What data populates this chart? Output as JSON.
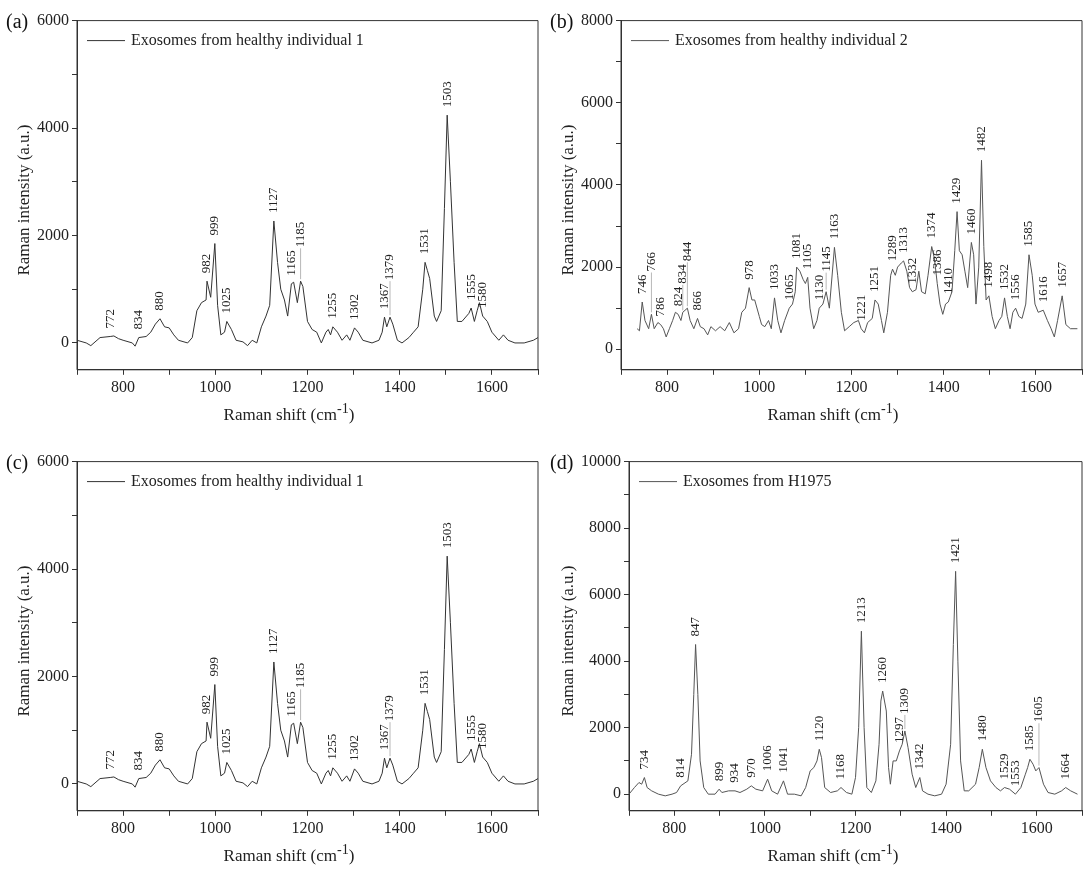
{
  "chart_data": [
    {
      "type": "line",
      "title": "(a)",
      "xlabel": "Raman shift (cm$^{-1}$)",
      "ylabel": "Raman intensity (a.u.)",
      "legend": "top left",
      "marker": "none",
      "line_style": "solid",
      "xlim": [
        700,
        1700
      ],
      "xticks": [
        {
          "value": 700,
          "label": null
        },
        800,
        {
          "value": 900,
          "label": null
        },
        1000,
        {
          "value": 1100,
          "label": null
        },
        1200,
        {
          "value": 1300,
          "label": null
        },
        1400,
        {
          "value": 1500,
          "label": null
        },
        1600,
        {
          "value": 1700,
          "label": null
        }
      ],
      "ylim": [
        -500,
        6000
      ],
      "yticks": [
        0,
        {
          "value": 1000,
          "label": null
        },
        2000,
        {
          "value": 3000,
          "label": null
        },
        4000,
        {
          "value": 5000,
          "label": null
        },
        6000
      ],
      "x": [
        700,
        720,
        730,
        750,
        772,
        780,
        790,
        800,
        820,
        826,
        834,
        850,
        860,
        870,
        880,
        890,
        900,
        910,
        920,
        940,
        950,
        960,
        970,
        980,
        982,
        990,
        999,
        1005,
        1012,
        1020,
        1025,
        1035,
        1045,
        1060,
        1070,
        1080,
        1090,
        1100,
        1110,
        1118,
        1127,
        1135,
        1142,
        1150,
        1157,
        1165,
        1170,
        1178,
        1185,
        1190,
        1200,
        1210,
        1220,
        1230,
        1240,
        1245,
        1250,
        1255,
        1265,
        1275,
        1285,
        1292,
        1302,
        1310,
        1320,
        1340,
        1355,
        1362,
        1367,
        1372,
        1379,
        1385,
        1395,
        1405,
        1420,
        1430,
        1440,
        1450,
        1455,
        1460,
        1465,
        1475,
        1480,
        1490,
        1497,
        1503,
        1510,
        1518,
        1525,
        1535,
        1550,
        1555,
        1562,
        1568,
        1573,
        1580,
        1590,
        1600,
        1615,
        1625,
        1635,
        1650,
        1670,
        1690,
        1700
      ],
      "series": [
        {
          "name": "Exosomes from healthy individual 1",
          "color": "#333333",
          "values": [
            50,
            0,
            -50,
            100,
            120,
            130,
            80,
            50,
            0,
            -60,
            100,
            120,
            200,
            350,
            450,
            300,
            280,
            150,
            50,
            0,
            100,
            600,
            750,
            800,
            1150,
            850,
            1850,
            700,
            150,
            200,
            400,
            250,
            50,
            20,
            -50,
            50,
            0,
            300,
            500,
            700,
            2270,
            1500,
            1000,
            800,
            500,
            1100,
            1130,
            750,
            1150,
            1050,
            400,
            250,
            200,
            0,
            200,
            250,
            150,
            300,
            200,
            50,
            150,
            50,
            280,
            200,
            50,
            0,
            50,
            200,
            480,
            300,
            480,
            350,
            50,
            0,
            100,
            200,
            300,
            1000,
            1500,
            1350,
            1200,
            500,
            400,
            600,
            2500,
            4240,
            3000,
            1500,
            400,
            400,
            550,
            650,
            400,
            600,
            750,
            500,
            400,
            200,
            50,
            150,
            50,
            0,
            0,
            50,
            100
          ]
        }
      ],
      "annotations": [
        {
          "text": "772",
          "x": 772,
          "y": 120
        },
        {
          "text": "834",
          "x": 834,
          "y": 100
        },
        {
          "text": "880",
          "x": 880,
          "y": 450
        },
        {
          "text": "982",
          "x": 982,
          "y": 1150
        },
        {
          "text": "999",
          "x": 999,
          "y": 1850
        },
        {
          "text": "1025",
          "x": 1025,
          "y": 400
        },
        {
          "text": "1127",
          "x": 1127,
          "y": 2270
        },
        {
          "text": "1165",
          "x": 1165,
          "y": 1100
        },
        {
          "text": "1185",
          "x": 1185,
          "y": 1150
        },
        {
          "text": "1255",
          "x": 1255,
          "y": 300
        },
        {
          "text": "1302",
          "x": 1302,
          "y": 280
        },
        {
          "text": "1367",
          "x": 1367,
          "y": 480
        },
        {
          "text": "1379",
          "x": 1379,
          "y": 480
        },
        {
          "text": "1531",
          "x": 1455,
          "y": 1500
        },
        {
          "text": "1503",
          "x": 1503,
          "y": 4240
        },
        {
          "text": "1555",
          "x": 1555,
          "y": 650
        },
        {
          "text": "1580",
          "x": 1580,
          "y": 500
        }
      ]
    },
    {
      "type": "line",
      "title": "(b)",
      "xlabel": "Raman shift (cm$^{-1}$)",
      "ylabel": "Raman intensity (a.u.)",
      "legend": "top left",
      "marker": "none",
      "line_style": "solid",
      "xlim": [
        700,
        1700
      ],
      "xticks": [
        {
          "value": 700,
          "label": null
        },
        800,
        {
          "value": 900,
          "label": null
        },
        1000,
        {
          "value": 1100,
          "label": null
        },
        1200,
        {
          "value": 1300,
          "label": null
        },
        1400,
        {
          "value": 1500,
          "label": null
        },
        1600,
        {
          "value": 1700,
          "label": null
        }
      ],
      "ylim": [
        -500,
        8000
      ],
      "yticks": [
        0,
        {
          "value": 1000,
          "label": null
        },
        2000,
        {
          "value": 3000,
          "label": null
        },
        4000,
        {
          "value": 5000,
          "label": null
        },
        6000,
        {
          "value": 7000,
          "label": null
        },
        8000
      ],
      "x": [
        735,
        740,
        746,
        752,
        760,
        766,
        772,
        780,
        786,
        792,
        798,
        805,
        812,
        818,
        824,
        830,
        834,
        844,
        850,
        858,
        866,
        872,
        880,
        888,
        895,
        905,
        915,
        925,
        935,
        945,
        955,
        962,
        970,
        978,
        984,
        990,
        1000,
        1005,
        1012,
        1020,
        1026,
        1033,
        1040,
        1047,
        1055,
        1065,
        1072,
        1078,
        1081,
        1088,
        1095,
        1100,
        1105,
        1110,
        1118,
        1125,
        1130,
        1138,
        1145,
        1152,
        1163,
        1170,
        1178,
        1185,
        1195,
        1205,
        1215,
        1221,
        1228,
        1235,
        1245,
        1251,
        1258,
        1265,
        1270,
        1278,
        1285,
        1289,
        1295,
        1300,
        1308,
        1313,
        1320,
        1326,
        1332,
        1340,
        1346,
        1352,
        1360,
        1366,
        1374,
        1380,
        1386,
        1392,
        1398,
        1404,
        1410,
        1418,
        1424,
        1429,
        1434,
        1440,
        1446,
        1452,
        1460,
        1465,
        1470,
        1476,
        1482,
        1487,
        1492,
        1498,
        1505,
        1512,
        1520,
        1526,
        1532,
        1538,
        1544,
        1550,
        1556,
        1563,
        1570,
        1578,
        1585,
        1592,
        1598,
        1605,
        1616,
        1625,
        1633,
        1640,
        1647,
        1657,
        1665,
        1675,
        1690
      ],
      "series": [
        {
          "name": "Exosomes from healthy individual 2",
          "color": "#555555",
          "values": [
            500,
            450,
            1150,
            700,
            500,
            850,
            500,
            650,
            600,
            500,
            300,
            500,
            700,
            900,
            850,
            700,
            900,
            1000,
            700,
            500,
            750,
            550,
            500,
            350,
            550,
            450,
            550,
            450,
            650,
            400,
            500,
            900,
            1000,
            1500,
            1200,
            1200,
            800,
            600,
            550,
            700,
            500,
            1250,
            700,
            400,
            700,
            1000,
            1100,
            1400,
            2000,
            1900,
            1700,
            1600,
            1750,
            1000,
            500,
            700,
            1000,
            1100,
            1400,
            1000,
            2480,
            1800,
            900,
            450,
            550,
            650,
            700,
            500,
            400,
            650,
            750,
            1200,
            1100,
            700,
            400,
            900,
            1800,
            1950,
            1800,
            2000,
            2100,
            2150,
            1900,
            1500,
            1400,
            1450,
            1900,
            1400,
            1350,
            1800,
            2500,
            2200,
            1600,
            1100,
            850,
            1100,
            1150,
            1400,
            2400,
            3350,
            2400,
            2300,
            1900,
            1500,
            2600,
            2300,
            1100,
            2000,
            4600,
            2500,
            1200,
            1300,
            800,
            500,
            700,
            800,
            1250,
            800,
            500,
            900,
            1000,
            800,
            750,
            1100,
            2300,
            1800,
            1100,
            900,
            950,
            700,
            500,
            300,
            700,
            1300,
            600,
            500,
            500
          ]
        }
      ],
      "annotations": [
        {
          "text": "746",
          "x": 746,
          "y": 1150
        },
        {
          "text": "766",
          "x": 766,
          "y": 850
        },
        {
          "text": "786",
          "x": 786,
          "y": 600
        },
        {
          "text": "824",
          "x": 824,
          "y": 850
        },
        {
          "text": "834",
          "x": 834,
          "y": 900
        },
        {
          "text": "844",
          "x": 844,
          "y": 1000
        },
        {
          "text": "866",
          "x": 866,
          "y": 750
        },
        {
          "text": "978",
          "x": 978,
          "y": 1500
        },
        {
          "text": "1033",
          "x": 1033,
          "y": 1250
        },
        {
          "text": "1065",
          "x": 1065,
          "y": 1000
        },
        {
          "text": "1081",
          "x": 1081,
          "y": 2000
        },
        {
          "text": "1105",
          "x": 1105,
          "y": 1750
        },
        {
          "text": "1130",
          "x": 1130,
          "y": 1000
        },
        {
          "text": "1145",
          "x": 1145,
          "y": 1400
        },
        {
          "text": "1163",
          "x": 1163,
          "y": 2480
        },
        {
          "text": "1221",
          "x": 1221,
          "y": 500
        },
        {
          "text": "1251",
          "x": 1251,
          "y": 1200
        },
        {
          "text": "1289",
          "x": 1289,
          "y": 1950
        },
        {
          "text": "1313",
          "x": 1313,
          "y": 2150
        },
        {
          "text": "1332",
          "x": 1332,
          "y": 1400
        },
        {
          "text": "1374",
          "x": 1374,
          "y": 2500
        },
        {
          "text": "1386",
          "x": 1386,
          "y": 1600
        },
        {
          "text": "1410",
          "x": 1410,
          "y": 1150
        },
        {
          "text": "1429",
          "x": 1429,
          "y": 3350
        },
        {
          "text": "1460",
          "x": 1460,
          "y": 2600
        },
        {
          "text": "1482",
          "x": 1482,
          "y": 4600
        },
        {
          "text": "1498",
          "x": 1498,
          "y": 1300
        },
        {
          "text": "1532",
          "x": 1532,
          "y": 1250
        },
        {
          "text": "1556",
          "x": 1556,
          "y": 1000
        },
        {
          "text": "1585",
          "x": 1585,
          "y": 2300
        },
        {
          "text": "1616",
          "x": 1616,
          "y": 950
        },
        {
          "text": "1657",
          "x": 1657,
          "y": 1300
        }
      ]
    },
    {
      "type": "line",
      "title": "(c)",
      "xlabel": "Raman shift (cm$^{-1}$)",
      "ylabel": "Raman intensity (a.u.)",
      "legend": "top left",
      "marker": "none",
      "line_style": "solid",
      "xlim": [
        700,
        1700
      ],
      "xticks": [
        {
          "value": 700,
          "label": null
        },
        800,
        {
          "value": 900,
          "label": null
        },
        1000,
        {
          "value": 1100,
          "label": null
        },
        1200,
        {
          "value": 1300,
          "label": null
        },
        1400,
        {
          "value": 1500,
          "label": null
        },
        1600,
        {
          "value": 1700,
          "label": null
        }
      ],
      "ylim": [
        -500,
        6000
      ],
      "yticks": [
        0,
        {
          "value": 1000,
          "label": null
        },
        2000,
        {
          "value": 3000,
          "label": null
        },
        4000,
        {
          "value": 5000,
          "label": null
        },
        6000
      ],
      "x": [
        700,
        720,
        730,
        750,
        772,
        780,
        790,
        800,
        820,
        826,
        834,
        850,
        860,
        870,
        880,
        890,
        900,
        910,
        920,
        940,
        950,
        960,
        970,
        980,
        982,
        990,
        999,
        1005,
        1012,
        1020,
        1025,
        1035,
        1045,
        1060,
        1070,
        1080,
        1090,
        1100,
        1110,
        1118,
        1127,
        1135,
        1142,
        1150,
        1157,
        1165,
        1170,
        1178,
        1185,
        1190,
        1200,
        1210,
        1220,
        1230,
        1240,
        1245,
        1250,
        1255,
        1265,
        1275,
        1285,
        1292,
        1302,
        1310,
        1320,
        1340,
        1355,
        1362,
        1367,
        1372,
        1379,
        1385,
        1395,
        1405,
        1420,
        1430,
        1440,
        1450,
        1455,
        1460,
        1465,
        1475,
        1480,
        1490,
        1497,
        1503,
        1510,
        1518,
        1525,
        1535,
        1550,
        1555,
        1562,
        1568,
        1573,
        1580,
        1590,
        1600,
        1615,
        1625,
        1635,
        1650,
        1670,
        1690,
        1700
      ],
      "series": [
        {
          "name": "Exosomes from healthy individual 1",
          "color": "#333333",
          "values": [
            50,
            0,
            -50,
            100,
            120,
            130,
            80,
            50,
            0,
            -60,
            100,
            120,
            200,
            350,
            450,
            300,
            280,
            150,
            50,
            0,
            100,
            600,
            750,
            800,
            1150,
            850,
            1850,
            700,
            150,
            200,
            400,
            250,
            50,
            20,
            -50,
            50,
            0,
            300,
            500,
            700,
            2270,
            1500,
            1000,
            800,
            500,
            1100,
            1130,
            750,
            1150,
            1050,
            400,
            250,
            200,
            0,
            200,
            250,
            150,
            300,
            200,
            50,
            150,
            50,
            280,
            200,
            50,
            0,
            50,
            200,
            480,
            300,
            480,
            350,
            50,
            0,
            100,
            200,
            300,
            1000,
            1500,
            1350,
            1200,
            500,
            400,
            600,
            2500,
            4240,
            3000,
            1500,
            400,
            400,
            550,
            650,
            400,
            600,
            750,
            500,
            400,
            200,
            50,
            150,
            50,
            0,
            0,
            50,
            100
          ]
        }
      ],
      "annotations": [
        {
          "text": "772",
          "x": 772,
          "y": 120
        },
        {
          "text": "834",
          "x": 834,
          "y": 100
        },
        {
          "text": "880",
          "x": 880,
          "y": 450
        },
        {
          "text": "982",
          "x": 982,
          "y": 1150
        },
        {
          "text": "999",
          "x": 999,
          "y": 1850
        },
        {
          "text": "1025",
          "x": 1025,
          "y": 400
        },
        {
          "text": "1127",
          "x": 1127,
          "y": 2270
        },
        {
          "text": "1165",
          "x": 1165,
          "y": 1100
        },
        {
          "text": "1185",
          "x": 1185,
          "y": 1150
        },
        {
          "text": "1255",
          "x": 1255,
          "y": 300
        },
        {
          "text": "1302",
          "x": 1302,
          "y": 280
        },
        {
          "text": "1367",
          "x": 1367,
          "y": 480
        },
        {
          "text": "1379",
          "x": 1379,
          "y": 480
        },
        {
          "text": "1531",
          "x": 1455,
          "y": 1500
        },
        {
          "text": "1503",
          "x": 1503,
          "y": 4240
        },
        {
          "text": "1555",
          "x": 1555,
          "y": 650
        },
        {
          "text": "1580",
          "x": 1580,
          "y": 500
        }
      ]
    },
    {
      "type": "line",
      "title": "(d)",
      "xlabel": "Raman shift (cm$^{-1}$)",
      "ylabel": "Raman intensity (a.u.)",
      "legend": "top left",
      "marker": "none",
      "line_style": "solid",
      "xlim": [
        700,
        1700
      ],
      "xticks": [
        {
          "value": 700,
          "label": null
        },
        800,
        {
          "value": 900,
          "label": null
        },
        1000,
        {
          "value": 1100,
          "label": null
        },
        1200,
        {
          "value": 1300,
          "label": null
        },
        1400,
        {
          "value": 1500,
          "label": null
        },
        1600,
        {
          "value": 1700,
          "label": null
        }
      ],
      "ylim": [
        -500,
        10000
      ],
      "yticks": [
        0,
        {
          "value": 1000,
          "label": null
        },
        2000,
        {
          "value": 3000,
          "label": null
        },
        4000,
        {
          "value": 5000,
          "label": null
        },
        6000,
        {
          "value": 7000,
          "label": null
        },
        8000,
        {
          "value": 9000,
          "label": null
        },
        10000
      ],
      "x": [
        700,
        712,
        722,
        728,
        734,
        740,
        750,
        765,
        780,
        795,
        805,
        814,
        830,
        838,
        843,
        847,
        852,
        857,
        865,
        875,
        890,
        899,
        905,
        920,
        934,
        945,
        960,
        970,
        980,
        995,
        1006,
        1015,
        1028,
        1041,
        1050,
        1065,
        1080,
        1090,
        1100,
        1108,
        1115,
        1120,
        1125,
        1132,
        1145,
        1160,
        1168,
        1180,
        1192,
        1200,
        1207,
        1213,
        1219,
        1225,
        1235,
        1245,
        1252,
        1256,
        1260,
        1268,
        1273,
        1277,
        1283,
        1290,
        1297,
        1303,
        1309,
        1316,
        1325,
        1333,
        1342,
        1348,
        1360,
        1375,
        1390,
        1400,
        1410,
        1416,
        1421,
        1426,
        1432,
        1440,
        1450,
        1465,
        1473,
        1480,
        1488,
        1498,
        1510,
        1520,
        1529,
        1540,
        1553,
        1565,
        1575,
        1580,
        1585,
        1592,
        1598,
        1605,
        1615,
        1625,
        1640,
        1655,
        1664,
        1675,
        1690
      ],
      "series": [
        {
          "name": "Exosomes from H1975",
          "color": "#555555",
          "values": [
            0,
            200,
            350,
            300,
            500,
            200,
            100,
            0,
            -50,
            0,
            50,
            250,
            400,
            1200,
            3000,
            4500,
            3000,
            1000,
            200,
            0,
            0,
            150,
            50,
            100,
            100,
            50,
            150,
            250,
            150,
            100,
            450,
            100,
            0,
            400,
            0,
            0,
            -50,
            200,
            700,
            800,
            1000,
            1350,
            1100,
            200,
            50,
            100,
            200,
            50,
            0,
            500,
            2000,
            4900,
            2000,
            200,
            50,
            400,
            1500,
            2800,
            3100,
            2500,
            800,
            300,
            1000,
            1000,
            1300,
            1500,
            1900,
            1400,
            600,
            200,
            500,
            100,
            0,
            -50,
            0,
            300,
            1500,
            4500,
            6700,
            4000,
            1000,
            100,
            100,
            300,
            800,
            1350,
            800,
            400,
            200,
            100,
            200,
            150,
            0,
            200,
            600,
            800,
            1050,
            900,
            700,
            800,
            300,
            50,
            0,
            100,
            200,
            100,
            0
          ]
        }
      ],
      "annotations": [
        {
          "text": "734",
          "x": 734,
          "y": 500
        },
        {
          "text": "814",
          "x": 814,
          "y": 250
        },
        {
          "text": "847",
          "x": 847,
          "y": 4500
        },
        {
          "text": "899",
          "x": 899,
          "y": 150
        },
        {
          "text": "934",
          "x": 934,
          "y": 100
        },
        {
          "text": "970",
          "x": 970,
          "y": 250
        },
        {
          "text": "1006",
          "x": 1006,
          "y": 450
        },
        {
          "text": "1041",
          "x": 1041,
          "y": 400
        },
        {
          "text": "1120",
          "x": 1120,
          "y": 1350
        },
        {
          "text": "1168",
          "x": 1168,
          "y": 200
        },
        {
          "text": "1213",
          "x": 1213,
          "y": 4900
        },
        {
          "text": "1260",
          "x": 1260,
          "y": 3100
        },
        {
          "text": "1297",
          "x": 1297,
          "y": 1300
        },
        {
          "text": "1309",
          "x": 1309,
          "y": 1900
        },
        {
          "text": "1342",
          "x": 1342,
          "y": 500
        },
        {
          "text": "1421",
          "x": 1421,
          "y": 6700
        },
        {
          "text": "1480",
          "x": 1480,
          "y": 1350
        },
        {
          "text": "1529",
          "x": 1529,
          "y": 200
        },
        {
          "text": "1553",
          "x": 1553,
          "y": 0
        },
        {
          "text": "1585",
          "x": 1585,
          "y": 1050
        },
        {
          "text": "1605",
          "x": 1605,
          "y": 800
        },
        {
          "text": "1664",
          "x": 1664,
          "y": 200
        }
      ]
    }
  ]
}
